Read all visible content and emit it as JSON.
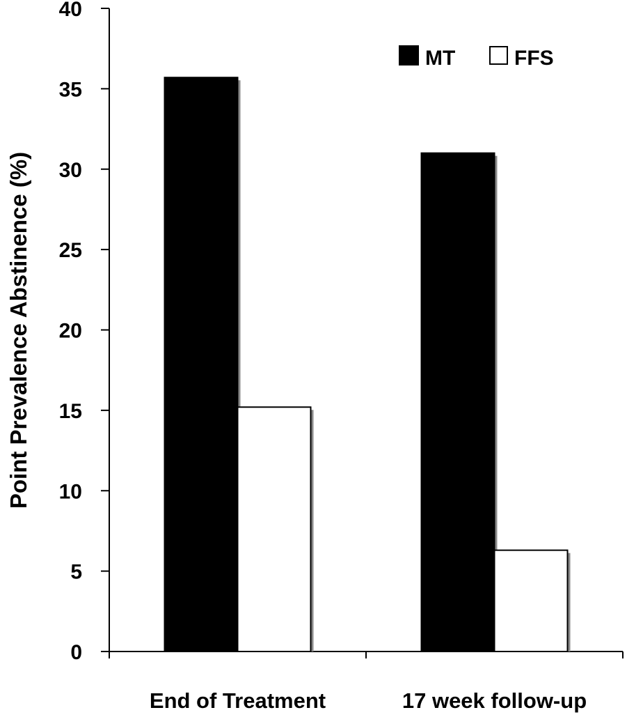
{
  "chart_data": {
    "type": "bar",
    "title": "",
    "xlabel": "",
    "ylabel": "Point Prevalence Abstinence (%)",
    "ylim": [
      0,
      40
    ],
    "yticks": [
      "0",
      "5",
      "10",
      "15",
      "20",
      "25",
      "30",
      "35",
      "40"
    ],
    "categories": [
      "End of Treatment",
      "17 week follow-up"
    ],
    "series": [
      {
        "name": "MT",
        "values": [
          35.7,
          31.0
        ],
        "color": "#000000"
      },
      {
        "name": "FFS",
        "values": [
          15.2,
          6.3
        ],
        "color": "#ffffff"
      }
    ],
    "grid": false,
    "legend_position": "top-right"
  }
}
